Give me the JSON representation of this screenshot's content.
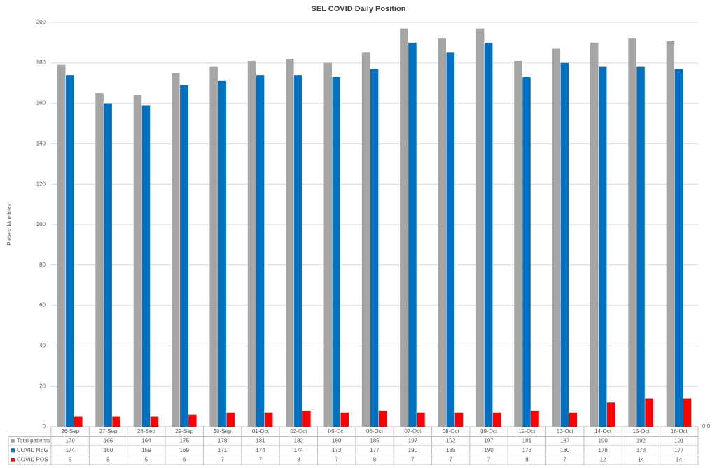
{
  "chart_data": {
    "type": "bar",
    "title": "SEL COVID Daily Position",
    "y_label": "Patient Numbers",
    "categories": [
      "26-Sep",
      "27-Sep",
      "28-Sep",
      "29-Sep",
      "30-Sep",
      "01-Oct",
      "02-Oct",
      "05-Oct",
      "06-Oct",
      "07-Oct",
      "08-Oct",
      "09-Oct",
      "12-Oct",
      "13-Oct",
      "14-Oct",
      "15-Oct",
      "16-Oct"
    ],
    "series": [
      {
        "name": "Total patients",
        "color": "#a5a5a5",
        "values": [
          179,
          165,
          164,
          175,
          178,
          181,
          182,
          180,
          185,
          197,
          192,
          197,
          181,
          187,
          190,
          192,
          191
        ]
      },
      {
        "name": "COVID NEG",
        "color": "#0070c0",
        "values": [
          174,
          160,
          159,
          169,
          171,
          174,
          174,
          173,
          177,
          190,
          185,
          190,
          173,
          180,
          178,
          178,
          177
        ]
      },
      {
        "name": "COVID POS",
        "color": "#ff0000",
        "values": [
          5,
          5,
          5,
          6,
          7,
          7,
          8,
          7,
          8,
          7,
          7,
          7,
          8,
          7,
          12,
          14,
          14
        ]
      }
    ],
    "ylim": [
      0,
      200
    ],
    "yticks": [
      0,
      20,
      40,
      60,
      80,
      100,
      120,
      140,
      160,
      180,
      200
    ],
    "y2lim": [
      0,
      1
    ],
    "y2ticks": [
      {
        "value": 0,
        "label": "0,0"
      }
    ],
    "grid": true,
    "legend": "data-table"
  }
}
